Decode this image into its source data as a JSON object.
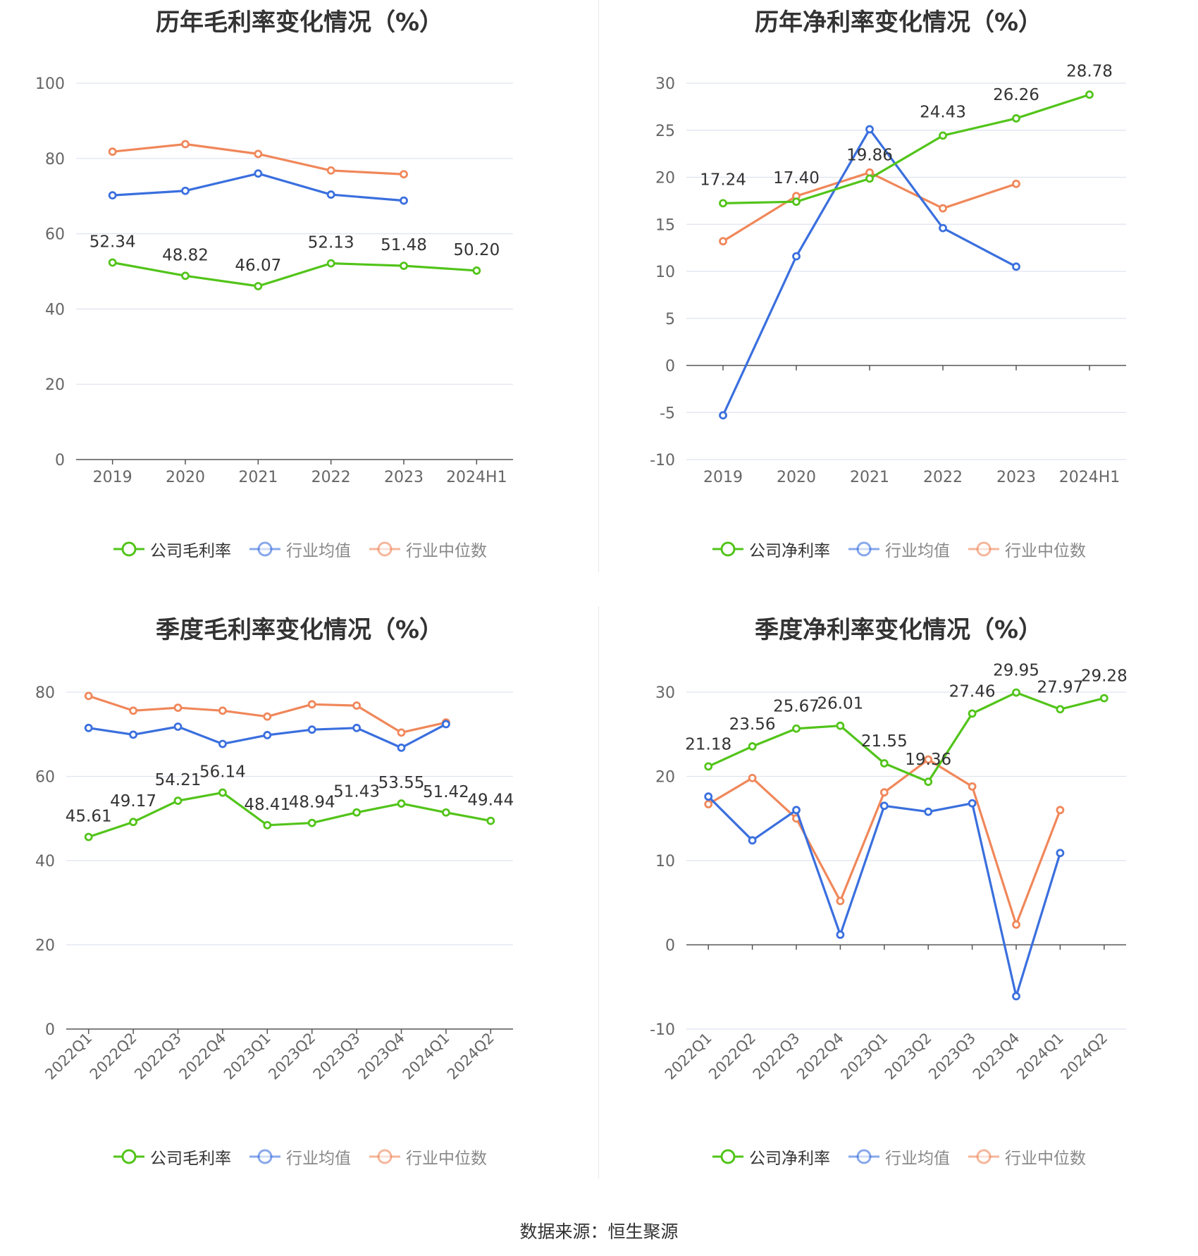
{
  "source_text": "数据来源：恒生聚源",
  "colors": {
    "company": "#52c41a",
    "industry_avg": "#3a6fde",
    "industry_median": "#f0875a",
    "grid": "#dfe3f0",
    "axis_text": "#666666",
    "label_text": "#333333"
  },
  "chart_data": [
    {
      "type": "line",
      "title": "历年毛利率变化情况（%）",
      "categories": [
        "2019",
        "2020",
        "2021",
        "2022",
        "2023",
        "2024H1"
      ],
      "ylim": [
        0,
        100
      ],
      "yticks": [
        0,
        20,
        40,
        60,
        80,
        100
      ],
      "grid": true,
      "legend_position": "bottom",
      "series": [
        {
          "name": "公司毛利率",
          "role": "company",
          "values": [
            52.34,
            48.82,
            46.07,
            52.13,
            51.48,
            50.2
          ],
          "labels": [
            "52.34",
            "48.82",
            "46.07",
            "52.13",
            "51.48",
            "50.20"
          ]
        },
        {
          "name": "行业均值",
          "role": "industry_avg",
          "values": [
            70.2,
            71.4,
            76.0,
            70.4,
            68.8,
            null
          ]
        },
        {
          "name": "行业中位数",
          "role": "industry_median",
          "values": [
            81.8,
            83.8,
            81.2,
            76.8,
            75.8,
            null
          ]
        }
      ]
    },
    {
      "type": "line",
      "title": "历年净利率变化情况（%）",
      "categories": [
        "2019",
        "2020",
        "2021",
        "2022",
        "2023",
        "2024H1"
      ],
      "ylim": [
        -10,
        30
      ],
      "yticks": [
        -10,
        -5,
        0,
        5,
        10,
        15,
        20,
        25,
        30
      ],
      "grid": true,
      "legend_position": "bottom",
      "series": [
        {
          "name": "公司净利率",
          "role": "company",
          "values": [
            17.24,
            17.4,
            19.86,
            24.43,
            26.26,
            28.78
          ],
          "labels": [
            "17.24",
            "17.40",
            "19.86",
            "24.43",
            "26.26",
            "28.78"
          ]
        },
        {
          "name": "行业均值",
          "role": "industry_avg",
          "values": [
            -5.3,
            11.6,
            25.1,
            14.6,
            10.5,
            null
          ]
        },
        {
          "name": "行业中位数",
          "role": "industry_median",
          "values": [
            13.2,
            18.0,
            20.5,
            16.7,
            19.3,
            null
          ]
        }
      ]
    },
    {
      "type": "line",
      "title": "季度毛利率变化情况（%）",
      "categories": [
        "2022Q1",
        "2022Q2",
        "2022Q3",
        "2022Q4",
        "2023Q1",
        "2023Q2",
        "2023Q3",
        "2023Q4",
        "2024Q1",
        "2024Q2"
      ],
      "ylim": [
        0,
        80
      ],
      "yticks": [
        0,
        20,
        40,
        60,
        80
      ],
      "grid": true,
      "rotated_x_labels": true,
      "legend_position": "bottom",
      "series": [
        {
          "name": "公司毛利率",
          "role": "company",
          "values": [
            45.61,
            49.17,
            54.21,
            56.14,
            48.41,
            48.94,
            51.43,
            53.55,
            51.42,
            49.44
          ],
          "labels": [
            "45.61",
            "49.17",
            "54.21",
            "56.14",
            "48.41",
            "48.94",
            "51.43",
            "53.55",
            "51.42",
            "49.44"
          ]
        },
        {
          "name": "行业均值",
          "role": "industry_avg",
          "values": [
            71.5,
            69.9,
            71.8,
            67.7,
            69.8,
            71.1,
            71.5,
            66.8,
            72.4,
            null
          ]
        },
        {
          "name": "行业中位数",
          "role": "industry_median",
          "values": [
            79.1,
            75.6,
            76.3,
            75.6,
            74.2,
            77.1,
            76.8,
            70.4,
            72.8,
            null
          ]
        }
      ]
    },
    {
      "type": "line",
      "title": "季度净利率变化情况（%）",
      "categories": [
        "2022Q1",
        "2022Q2",
        "2022Q3",
        "2022Q4",
        "2023Q1",
        "2023Q2",
        "2023Q3",
        "2023Q4",
        "2024Q1",
        "2024Q2"
      ],
      "ylim": [
        -10,
        30
      ],
      "yticks": [
        -10,
        0,
        10,
        20,
        30
      ],
      "grid": true,
      "rotated_x_labels": true,
      "legend_position": "bottom",
      "series": [
        {
          "name": "公司净利率",
          "role": "company",
          "values": [
            21.18,
            23.56,
            25.67,
            26.01,
            21.55,
            19.36,
            27.46,
            29.95,
            27.97,
            29.28
          ],
          "labels": [
            "21.18",
            "23.56",
            "25.67",
            "26.01",
            "21.55",
            "19.36",
            "27.46",
            "29.95",
            "27.97",
            "29.28"
          ]
        },
        {
          "name": "行业均值",
          "role": "industry_avg",
          "values": [
            17.6,
            12.4,
            16.0,
            1.2,
            16.5,
            15.8,
            16.8,
            -6.1,
            10.9,
            null
          ]
        },
        {
          "name": "行业中位数",
          "role": "industry_median",
          "values": [
            16.7,
            19.8,
            15.0,
            5.2,
            18.1,
            22.0,
            18.8,
            2.4,
            16.0,
            null
          ]
        }
      ]
    }
  ]
}
